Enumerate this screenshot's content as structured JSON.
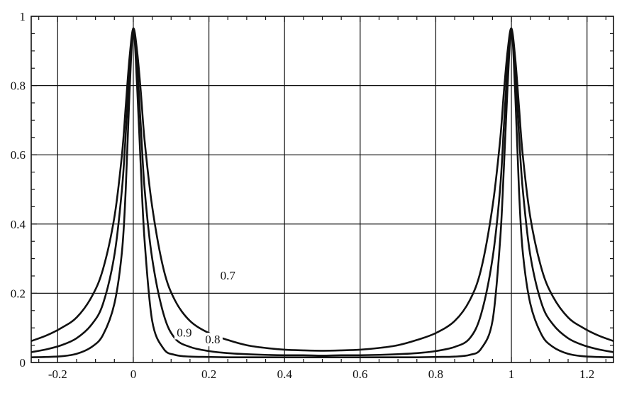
{
  "chart_data": {
    "type": "line",
    "title": "",
    "xlabel": "",
    "ylabel": "",
    "xlim": [
      -0.27,
      1.27
    ],
    "ylim": [
      0,
      1.0
    ],
    "grid": true,
    "legend": "none",
    "x_ticks": [
      -0.2,
      0,
      0.2,
      0.4,
      0.6,
      0.8,
      1,
      1.2
    ],
    "x_tick_labels": [
      "-0.2",
      "0",
      "0.2",
      "0.4",
      "0.6",
      "0.8",
      "1",
      "1.2"
    ],
    "y_ticks": [
      0,
      0.2,
      0.4,
      0.6,
      0.8,
      1
    ],
    "y_tick_labels": [
      "0",
      "0.2",
      "0.4",
      "0.6",
      "0.8",
      "1"
    ],
    "series": [
      {
        "name": "0.7",
        "x": [
          -0.27,
          -0.23,
          -0.19,
          -0.15,
          -0.11,
          -0.08,
          -0.05,
          -0.03,
          -0.02,
          -0.01,
          0.0,
          0.01,
          0.02,
          0.03,
          0.05,
          0.08,
          0.11,
          0.15,
          0.2,
          0.25,
          0.3,
          0.35,
          0.4,
          0.45,
          0.5,
          0.55,
          0.6,
          0.65,
          0.7,
          0.75,
          0.8,
          0.85,
          0.89,
          0.92,
          0.95,
          0.97,
          0.98,
          0.99,
          1.0,
          1.01,
          1.02,
          1.03,
          1.05,
          1.08,
          1.11,
          1.15,
          1.19,
          1.23,
          1.27
        ],
        "y": [
          0.062,
          0.078,
          0.1,
          0.13,
          0.19,
          0.27,
          0.42,
          0.6,
          0.74,
          0.88,
          0.965,
          0.9,
          0.78,
          0.64,
          0.45,
          0.27,
          0.18,
          0.12,
          0.085,
          0.065,
          0.05,
          0.042,
          0.037,
          0.035,
          0.034,
          0.035,
          0.037,
          0.042,
          0.05,
          0.065,
          0.085,
          0.12,
          0.18,
          0.27,
          0.45,
          0.64,
          0.78,
          0.9,
          0.965,
          0.88,
          0.74,
          0.6,
          0.42,
          0.27,
          0.19,
          0.13,
          0.1,
          0.078,
          0.062
        ]
      },
      {
        "name": "0.8",
        "x": [
          -0.27,
          -0.23,
          -0.19,
          -0.15,
          -0.11,
          -0.08,
          -0.05,
          -0.03,
          -0.02,
          -0.01,
          0.0,
          0.01,
          0.02,
          0.03,
          0.05,
          0.08,
          0.11,
          0.15,
          0.2,
          0.25,
          0.3,
          0.35,
          0.4,
          0.45,
          0.5,
          0.55,
          0.6,
          0.65,
          0.7,
          0.75,
          0.8,
          0.85,
          0.89,
          0.92,
          0.95,
          0.97,
          0.98,
          0.99,
          1.0,
          1.01,
          1.02,
          1.03,
          1.05,
          1.08,
          1.11,
          1.15,
          1.19,
          1.23,
          1.27
        ],
        "y": [
          0.03,
          0.038,
          0.05,
          0.07,
          0.11,
          0.17,
          0.31,
          0.5,
          0.66,
          0.84,
          0.965,
          0.86,
          0.68,
          0.5,
          0.3,
          0.14,
          0.07,
          0.045,
          0.033,
          0.027,
          0.024,
          0.022,
          0.021,
          0.021,
          0.02,
          0.021,
          0.021,
          0.022,
          0.024,
          0.027,
          0.033,
          0.045,
          0.07,
          0.14,
          0.3,
          0.5,
          0.68,
          0.86,
          0.965,
          0.84,
          0.66,
          0.5,
          0.31,
          0.17,
          0.11,
          0.07,
          0.05,
          0.038,
          0.03
        ]
      },
      {
        "name": "0.9",
        "x": [
          -0.27,
          -0.23,
          -0.19,
          -0.15,
          -0.11,
          -0.08,
          -0.05,
          -0.03,
          -0.02,
          -0.01,
          0.0,
          0.01,
          0.02,
          0.03,
          0.05,
          0.08,
          0.11,
          0.15,
          0.2,
          0.25,
          0.3,
          0.35,
          0.4,
          0.45,
          0.5,
          0.55,
          0.6,
          0.65,
          0.7,
          0.75,
          0.8,
          0.85,
          0.89,
          0.92,
          0.95,
          0.97,
          0.98,
          0.99,
          1.0,
          1.01,
          1.02,
          1.03,
          1.05,
          1.08,
          1.11,
          1.15,
          1.19,
          1.23,
          1.27
        ],
        "y": [
          0.015,
          0.016,
          0.018,
          0.025,
          0.045,
          0.08,
          0.17,
          0.32,
          0.5,
          0.78,
          0.965,
          0.8,
          0.56,
          0.35,
          0.12,
          0.04,
          0.022,
          0.017,
          0.016,
          0.015,
          0.015,
          0.015,
          0.015,
          0.015,
          0.015,
          0.015,
          0.015,
          0.015,
          0.015,
          0.015,
          0.016,
          0.017,
          0.022,
          0.04,
          0.12,
          0.35,
          0.56,
          0.8,
          0.965,
          0.78,
          0.5,
          0.32,
          0.17,
          0.08,
          0.045,
          0.025,
          0.018,
          0.016,
          0.015
        ]
      }
    ],
    "annotations": [
      {
        "text": "0.7",
        "x": 0.25,
        "y": 0.24
      },
      {
        "text": "0.9",
        "x": 0.135,
        "y": 0.075
      },
      {
        "text": "0.8",
        "x": 0.21,
        "y": 0.055
      }
    ]
  }
}
